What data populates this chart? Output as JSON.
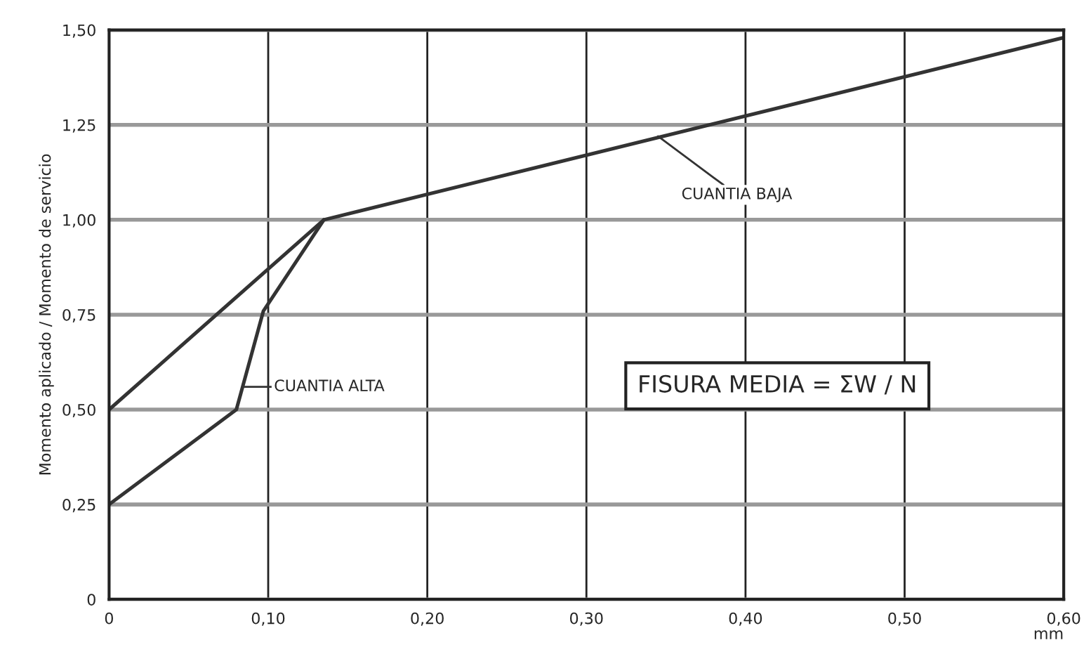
{
  "chart_data": {
    "type": "line",
    "ylabel": "Momento aplicado / Momento de servicio",
    "xlabel": "mm",
    "series": [
      {
        "color": "#333333",
        "x": [
          0,
          0.135,
          0.6
        ],
        "values": [
          0.5,
          1.0,
          1.48
        ]
      },
      {
        "color": "#333333",
        "x": [
          0,
          0.08,
          0.097,
          0.135
        ],
        "values": [
          0.25,
          0.5,
          0.76,
          1.0
        ]
      }
    ],
    "xlim": [
      0,
      0.6
    ],
    "ylim": [
      0,
      1.5
    ],
    "xticks": [
      0,
      {
        "value": 0.1,
        "label": "0,10"
      },
      {
        "value": 0.2,
        "label": "0,20"
      },
      {
        "value": 0.3,
        "label": "0,30"
      },
      {
        "value": 0.4,
        "label": "0,40"
      },
      {
        "value": 0.5,
        "label": "0,50"
      },
      {
        "value": 0.6,
        "label": "0,60"
      }
    ],
    "yticks": [
      0,
      {
        "value": 0.25,
        "label": "0,25"
      },
      {
        "value": 0.5,
        "label": "0,50"
      },
      {
        "value": 0.75,
        "label": "0,75"
      },
      {
        "value": 1.0,
        "label": "1,00"
      },
      {
        "value": 1.25,
        "label": "1,25"
      },
      {
        "value": 1.5,
        "label": "1,50"
      }
    ],
    "annotations": [
      {
        "text": "CUANTIA BAJA",
        "x": 0.345,
        "y": 1.22
      },
      {
        "text": "CUANTIA ALTA",
        "x": 0.084,
        "y": 0.56
      },
      "FISURA MEDIA = ΣW / N"
    ],
    "grid": true,
    "marker": "none",
    "line_style": "solid",
    "legend": false
  }
}
